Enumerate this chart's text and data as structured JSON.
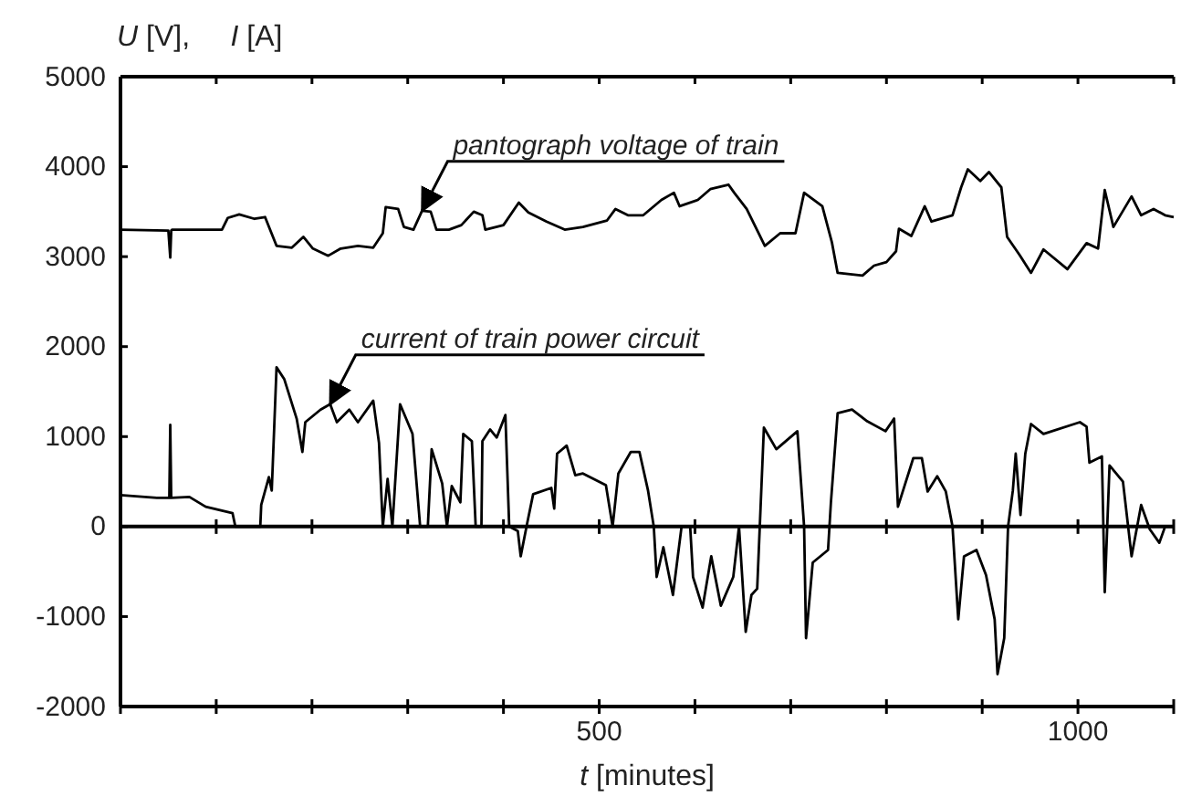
{
  "chart_data": {
    "type": "line",
    "ylabel": "U [V],     I [A]",
    "xlabel": "t [minutes]",
    "xlim": [
      0,
      1100
    ],
    "ylim": [
      -2000,
      5000
    ],
    "xticks": [
      {
        "value": 0,
        "label": null
      },
      {
        "value": 100,
        "label": null
      },
      {
        "value": 200,
        "label": null
      },
      {
        "value": 300,
        "label": null
      },
      {
        "value": 400,
        "label": null
      },
      500,
      {
        "value": 600,
        "label": null
      },
      {
        "value": 700,
        "label": null
      },
      {
        "value": 800,
        "label": null
      },
      {
        "value": 900,
        "label": null
      },
      1000,
      {
        "value": 1100,
        "label": null
      }
    ],
    "yticks": [
      -2000,
      -1000,
      0,
      1000,
      2000,
      3000,
      4000,
      5000
    ],
    "grid": false,
    "marker": "none",
    "line_style": "solid",
    "ref_lines": [
      {
        "axis": "y",
        "value": 0,
        "color": "#000000"
      }
    ],
    "annotations": [
      {
        "text": "pantograph voltage of train",
        "x": 315,
        "y": 3510
      },
      {
        "text": "current of train power circuit",
        "x": 219,
        "y": 1360
      }
    ],
    "series": [
      {
        "color": "#000000",
        "x": [
          0,
          50,
          52,
          53,
          54,
          106,
          112,
          124,
          140,
          151,
          163,
          179,
          191,
          201,
          217,
          230,
          248,
          264,
          274,
          277,
          290,
          296,
          306,
          315,
          324,
          330,
          343,
          356,
          369,
          378,
          381,
          400,
          416,
          426,
          445,
          464,
          483,
          508,
          517,
          530,
          546,
          565,
          578,
          584,
          603,
          616,
          635,
          641,
          654,
          673,
          689,
          705,
          714,
          733,
          743,
          749,
          775,
          787,
          800,
          810,
          813,
          826,
          840,
          847,
          869,
          878,
          885,
          898,
          907,
          920,
          926,
          939,
          951,
          964,
          989,
          1009,
          1021,
          1028,
          1037,
          1056,
          1066,
          1079,
          1091,
          1100
        ],
        "values": [
          3300,
          3290,
          2990,
          3290,
          3300,
          3300,
          3430,
          3470,
          3420,
          3440,
          3120,
          3100,
          3220,
          3090,
          3010,
          3090,
          3120,
          3100,
          3260,
          3550,
          3530,
          3330,
          3300,
          3510,
          3500,
          3300,
          3300,
          3350,
          3500,
          3460,
          3300,
          3350,
          3600,
          3490,
          3390,
          3300,
          3330,
          3400,
          3530,
          3460,
          3460,
          3630,
          3710,
          3560,
          3630,
          3750,
          3800,
          3710,
          3530,
          3120,
          3260,
          3260,
          3710,
          3560,
          3160,
          2820,
          2790,
          2900,
          2940,
          3060,
          3310,
          3230,
          3560,
          3390,
          3460,
          3770,
          3970,
          3840,
          3940,
          3770,
          3220,
          3020,
          2820,
          3080,
          2860,
          3150,
          3090,
          3740,
          3330,
          3670,
          3460,
          3530,
          3460,
          3440
        ]
      },
      {
        "color": "#000000",
        "x": [
          0,
          38,
          51,
          52,
          53,
          72,
          89,
          117,
          120,
          146,
          147,
          155,
          158,
          163,
          171,
          184,
          190,
          193,
          209,
          219,
          226,
          239,
          248,
          264,
          270,
          274,
          279,
          284,
          292,
          305,
          313,
          321,
          325,
          336,
          341,
          346,
          355,
          358,
          367,
          371,
          377,
          378,
          386,
          393,
          402,
          406,
          415,
          418,
          425,
          431,
          450,
          453,
          456,
          466,
          475,
          483,
          507,
          514,
          520,
          533,
          542,
          551,
          557,
          560,
          567,
          577,
          586,
          595,
          598,
          608,
          617,
          627,
          640,
          646,
          653,
          659,
          665,
          672,
          685,
          707,
          714,
          716,
          723,
          739,
          742,
          749,
          764,
          780,
          799,
          808,
          812,
          828,
          837,
          843,
          853,
          862,
          869,
          875,
          881,
          894,
          904,
          913,
          916,
          923,
          927,
          932,
          935,
          940,
          945,
          951,
          964,
          1002,
          1009,
          1012,
          1025,
          1028,
          1033,
          1047,
          1056,
          1066,
          1075,
          1085,
          1091,
          1100
        ],
        "values": [
          350,
          320,
          320,
          1130,
          320,
          330,
          220,
          150,
          0,
          0,
          240,
          550,
          400,
          1770,
          1640,
          1200,
          830,
          1160,
          1300,
          1360,
          1160,
          1300,
          1160,
          1400,
          930,
          0,
          530,
          0,
          1360,
          1030,
          0,
          0,
          860,
          480,
          0,
          450,
          270,
          1030,
          950,
          0,
          0,
          950,
          1080,
          990,
          1240,
          0,
          -50,
          -330,
          50,
          360,
          430,
          200,
          810,
          900,
          570,
          590,
          460,
          0,
          590,
          830,
          830,
          400,
          0,
          -560,
          -230,
          -760,
          0,
          0,
          -560,
          -900,
          -330,
          -880,
          -560,
          0,
          -1170,
          -760,
          -690,
          1100,
          860,
          1060,
          0,
          -1240,
          -400,
          -260,
          270,
          1260,
          1300,
          1170,
          1060,
          1200,
          220,
          760,
          760,
          390,
          560,
          390,
          0,
          -1030,
          -330,
          -260,
          -540,
          -1030,
          -1640,
          -1240,
          0,
          400,
          810,
          130,
          810,
          1140,
          1030,
          1160,
          1110,
          710,
          780,
          -730,
          680,
          500,
          -330,
          240,
          -30,
          -180,
          0,
          0
        ]
      }
    ]
  }
}
